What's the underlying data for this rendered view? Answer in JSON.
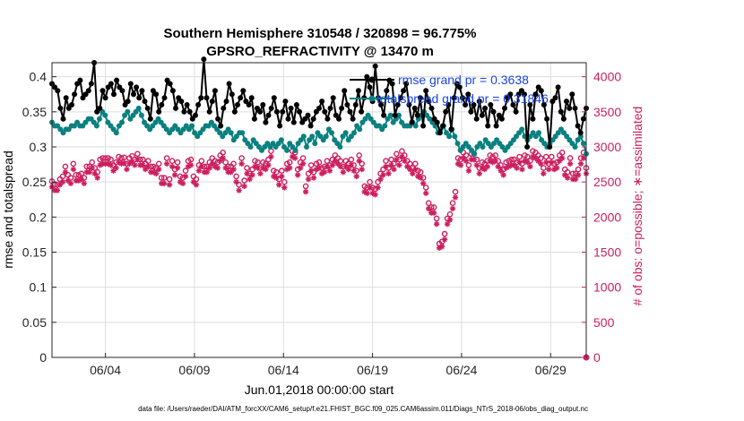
{
  "chart_data": {
    "type": "line",
    "title": "Southern Hemisphere 310548 / 320898 = 96.775%",
    "subtitle": "GPSRO_REFRACTIVITY @ 13470 m",
    "xlabel": "Jun.01,2018 00:00:00 start",
    "ylabel": "rmse and totalspread",
    "y2label": "# of obs: o=possible; ∗=assimilated",
    "xticks": [
      "06/04",
      "06/09",
      "06/14",
      "06/19",
      "06/24",
      "06/29"
    ],
    "xtick_days": [
      3,
      8,
      13,
      18,
      23,
      28
    ],
    "xlim": [
      0,
      30
    ],
    "ylim": [
      0,
      0.42
    ],
    "yticks": [
      "0",
      "0.05",
      "0.1",
      "0.15",
      "0.2",
      "0.25",
      "0.3",
      "0.35",
      "0.4"
    ],
    "yticks_values": [
      0,
      0.05,
      0.1,
      0.15,
      0.2,
      0.25,
      0.3,
      0.35,
      0.4
    ],
    "y2lim": [
      0,
      4200
    ],
    "y2ticks": [
      "0",
      "500",
      "1000",
      "1500",
      "2000",
      "2500",
      "3000",
      "3500",
      "4000"
    ],
    "y2ticks_values": [
      0,
      500,
      1000,
      1500,
      2000,
      2500,
      3000,
      3500,
      4000
    ],
    "grid": true,
    "legend_position": "top-right",
    "footer": "data file: /Users/raeder/DAI/ATM_forcXX/CAM6_setup/f.e21.FHIST_BGC.f09_025.CAM6assim.011/Diags_NTrS_2018-06/obs_diag_output.nc",
    "series": [
      {
        "name": "rmse grand pr = 0.3638",
        "color": "#000000",
        "values": [
          0.39,
          0.385,
          0.38,
          0.355,
          0.34,
          0.37,
          0.355,
          0.36,
          0.375,
          0.39,
          0.395,
          0.37,
          0.375,
          0.38,
          0.39,
          0.42,
          0.35,
          0.355,
          0.38,
          0.37,
          0.385,
          0.39,
          0.375,
          0.395,
          0.385,
          0.38,
          0.36,
          0.365,
          0.39,
          0.375,
          0.385,
          0.37,
          0.38,
          0.365,
          0.355,
          0.34,
          0.38,
          0.375,
          0.35,
          0.36,
          0.37,
          0.395,
          0.39,
          0.38,
          0.355,
          0.37,
          0.365,
          0.35,
          0.36,
          0.35,
          0.34,
          0.345,
          0.36,
          0.37,
          0.425,
          0.37,
          0.35,
          0.365,
          0.38,
          0.34,
          0.33,
          0.355,
          0.365,
          0.39,
          0.375,
          0.35,
          0.36,
          0.37,
          0.38,
          0.365,
          0.36,
          0.37,
          0.34,
          0.355,
          0.35,
          0.36,
          0.335,
          0.345,
          0.355,
          0.37,
          0.35,
          0.33,
          0.35,
          0.365,
          0.34,
          0.355,
          0.335,
          0.36,
          0.35,
          0.335,
          0.34,
          0.345,
          0.33,
          0.34,
          0.35,
          0.355,
          0.365,
          0.35,
          0.34,
          0.355,
          0.37,
          0.345,
          0.34,
          0.355,
          0.38,
          0.36,
          0.35,
          0.34,
          0.36,
          0.38,
          0.35,
          0.37,
          0.4,
          0.385,
          0.365,
          0.415,
          0.37,
          0.36,
          0.345,
          0.38,
          0.395,
          0.39,
          0.345,
          0.36,
          0.37,
          0.38,
          0.39,
          0.36,
          0.335,
          0.355,
          0.345,
          0.37,
          0.33,
          0.38,
          0.365,
          0.355,
          0.34,
          0.335,
          0.32,
          0.33,
          0.35,
          0.36,
          0.325,
          0.37,
          0.39,
          0.385,
          0.37,
          0.36,
          0.375,
          0.35,
          0.36,
          0.34,
          0.365,
          0.345,
          0.355,
          0.33,
          0.36,
          0.35,
          0.33,
          0.345,
          0.34,
          0.355,
          0.37,
          0.375,
          0.36,
          0.35,
          0.375,
          0.38,
          0.375,
          0.3,
          0.36,
          0.34,
          0.375,
          0.385,
          0.38,
          0.36,
          0.34,
          0.3,
          0.365,
          0.37,
          0.385,
          0.35,
          0.34,
          0.365,
          0.355,
          0.375,
          0.355,
          0.33,
          0.32,
          0.34,
          0.355
        ],
        "valid": false
      },
      {
        "name": "totalspread grand pr = 0.31846",
        "color": "#0b8080",
        "values": [
          0.335,
          0.33,
          0.33,
          0.325,
          0.32,
          0.325,
          0.325,
          0.33,
          0.33,
          0.335,
          0.33,
          0.33,
          0.335,
          0.34,
          0.34,
          0.335,
          0.33,
          0.34,
          0.35,
          0.345,
          0.335,
          0.33,
          0.325,
          0.32,
          0.33,
          0.335,
          0.345,
          0.35,
          0.34,
          0.345,
          0.35,
          0.355,
          0.345,
          0.335,
          0.33,
          0.325,
          0.33,
          0.335,
          0.34,
          0.335,
          0.33,
          0.325,
          0.32,
          0.325,
          0.33,
          0.325,
          0.32,
          0.325,
          0.33,
          0.325,
          0.33,
          0.32,
          0.315,
          0.32,
          0.325,
          0.33,
          0.33,
          0.335,
          0.33,
          0.325,
          0.32,
          0.315,
          0.32,
          0.325,
          0.32,
          0.31,
          0.315,
          0.32,
          0.32,
          0.31,
          0.305,
          0.3,
          0.31,
          0.305,
          0.3,
          0.295,
          0.3,
          0.305,
          0.3,
          0.305,
          0.3,
          0.305,
          0.31,
          0.3,
          0.295,
          0.305,
          0.3,
          0.295,
          0.305,
          0.31,
          0.315,
          0.3,
          0.31,
          0.315,
          0.305,
          0.32,
          0.315,
          0.31,
          0.315,
          0.325,
          0.32,
          0.31,
          0.305,
          0.3,
          0.315,
          0.32,
          0.31,
          0.315,
          0.32,
          0.33,
          0.325,
          0.335,
          0.34,
          0.345,
          0.34,
          0.335,
          0.33,
          0.33,
          0.325,
          0.33,
          0.34,
          0.345,
          0.335,
          0.34,
          0.345,
          0.335,
          0.33,
          0.33,
          0.33,
          0.335,
          0.33,
          0.34,
          0.345,
          0.35,
          0.345,
          0.34,
          0.335,
          0.33,
          0.32,
          0.325,
          0.33,
          0.32,
          0.315,
          0.325,
          0.315,
          0.305,
          0.295,
          0.3,
          0.305,
          0.3,
          0.295,
          0.29,
          0.3,
          0.305,
          0.3,
          0.31,
          0.305,
          0.3,
          0.305,
          0.31,
          0.305,
          0.3,
          0.295,
          0.3,
          0.305,
          0.31,
          0.315,
          0.32,
          0.325,
          0.315,
          0.31,
          0.315,
          0.32,
          0.315,
          0.32,
          0.31,
          0.305,
          0.3,
          0.305,
          0.31,
          0.315,
          0.32,
          0.325,
          0.32,
          0.315,
          0.31,
          0.305,
          0.3,
          0.31,
          0.315,
          0.305,
          0.29
        ],
        "valid": false
      }
    ],
    "obs_possible": [
      2510,
      2460,
      2460,
      2540,
      2580,
      2720,
      2600,
      2560,
      2760,
      2600,
      2600,
      2620,
      2560,
      2720,
      2720,
      2780,
      2700,
      2640,
      2820,
      2840,
      2840,
      2840,
      2820,
      2740,
      2780,
      2860,
      2840,
      2850,
      2760,
      2840,
      2870,
      2820,
      2900,
      2820,
      2820,
      2760,
      2800,
      2720,
      2720,
      2700,
      2760,
      2560,
      2560,
      2840,
      2540,
      2800,
      2680,
      2780,
      2580,
      2560,
      2660,
      2800,
      2820,
      2580,
      2540,
      2740,
      2800,
      2720,
      2720,
      2780,
      2840,
      2800,
      2780,
      2880,
      2920,
      2780,
      2720,
      2720,
      2760,
      2580,
      2460,
      2840,
      2520,
      2700,
      2620,
      2680,
      2800,
      2780,
      2700,
      2780,
      2760,
      2820,
      2940,
      2660,
      2640,
      2540,
      2660,
      2500,
      2760,
      2780,
      2940,
      2920,
      2680,
      2780,
      2840,
      2440,
      2620,
      2740,
      2640,
      2760,
      2780,
      2700,
      2720,
      2800,
      2740,
      2820,
      2880,
      2840,
      2800,
      2720,
      2800,
      2760,
      2820,
      2740,
      2660,
      2880,
      2760,
      2440,
      2420,
      2500,
      2420,
      2400,
      2500,
      2620,
      2680,
      2800,
      2700,
      2820,
      2760,
      2900,
      2820,
      2940,
      2880,
      2800,
      2760,
      2700,
      2760,
      2660,
      2640,
      2560,
      2420,
      2200,
      2140,
      2140,
      1980,
      1620,
      1650,
      1760,
      1980,
      2040,
      2200,
      2360,
      2840,
      2820,
      2920,
      2880,
      2740,
      2900,
      2900,
      2820,
      2700,
      2780,
      2760,
      2800,
      2880,
      2860,
      2880,
      2800,
      2740,
      2680,
      2780,
      2800,
      2820,
      2820,
      2780,
      2860,
      2760,
      2880,
      2860,
      2800,
      2940,
      2920,
      2880,
      2840,
      2700,
      2860,
      2760,
      2860,
      2760,
      2780,
      2880,
      2920,
      2680,
      2640,
      2840,
      2620,
      2620,
      2680,
      2840,
      2920,
      2700
    ],
    "obs_assimilated": [
      2430,
      2380,
      2380,
      2460,
      2500,
      2640,
      2520,
      2480,
      2680,
      2520,
      2520,
      2540,
      2480,
      2640,
      2640,
      2700,
      2620,
      2560,
      2740,
      2760,
      2760,
      2760,
      2740,
      2660,
      2700,
      2780,
      2760,
      2770,
      2680,
      2760,
      2790,
      2740,
      2820,
      2740,
      2740,
      2680,
      2720,
      2640,
      2640,
      2620,
      2680,
      2480,
      2480,
      2760,
      2460,
      2720,
      2600,
      2700,
      2500,
      2480,
      2580,
      2720,
      2740,
      2500,
      2460,
      2660,
      2720,
      2640,
      2640,
      2700,
      2760,
      2720,
      2700,
      2800,
      2840,
      2700,
      2640,
      2640,
      2680,
      2500,
      2380,
      2760,
      2440,
      2620,
      2540,
      2600,
      2720,
      2700,
      2620,
      2700,
      2680,
      2740,
      2860,
      2580,
      2560,
      2460,
      2580,
      2420,
      2680,
      2700,
      2860,
      2840,
      2600,
      2700,
      2760,
      2360,
      2540,
      2660,
      2560,
      2680,
      2700,
      2620,
      2640,
      2720,
      2660,
      2740,
      2800,
      2760,
      2720,
      2640,
      2720,
      2680,
      2740,
      2660,
      2580,
      2800,
      2680,
      2360,
      2340,
      2420,
      2340,
      2320,
      2420,
      2540,
      2600,
      2720,
      2620,
      2740,
      2680,
      2820,
      2740,
      2860,
      2800,
      2720,
      2680,
      2620,
      2680,
      2580,
      2560,
      2480,
      2340,
      2120,
      2060,
      2060,
      1900,
      1560,
      1580,
      1680,
      1900,
      1960,
      2120,
      2280,
      2760,
      2740,
      2840,
      2800,
      2660,
      2820,
      2820,
      2740,
      2620,
      2700,
      2680,
      2720,
      2800,
      2780,
      2800,
      2720,
      2660,
      2600,
      2700,
      2720,
      2740,
      2740,
      2700,
      2780,
      2680,
      2800,
      2780,
      2720,
      2860,
      2840,
      2800,
      2760,
      2620,
      2780,
      2680,
      2780,
      2680,
      2700,
      2800,
      2840,
      2600,
      2560,
      2760,
      2540,
      2540,
      2600,
      2760,
      2840,
      2620
    ]
  },
  "legend": {
    "rmse_label": "rmse grand pr = 0.3638",
    "spread_label": "totalspread grand pr = 0.31846"
  },
  "colors": {
    "rmse": "#000000",
    "spread": "#0b8080",
    "obs": "#cc1f5f",
    "legend_text": "#1a44e6",
    "grid": "#dddddd"
  }
}
